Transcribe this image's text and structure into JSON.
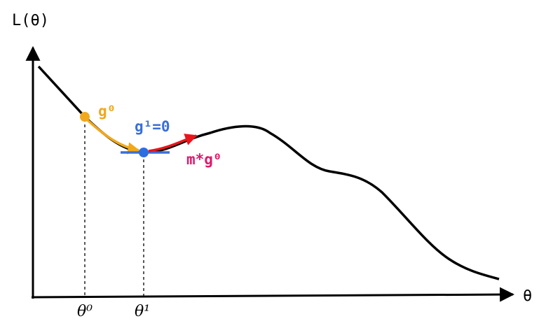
{
  "axes": {
    "y_label": "L(θ)",
    "x_label": "θ"
  },
  "points": [
    {
      "label": "θ⁰"
    },
    {
      "label": "θ¹"
    }
  ],
  "annotations": {
    "gradient_0": "g⁰",
    "gradient_1": "g¹=0",
    "momentum": "m*g⁰"
  }
}
